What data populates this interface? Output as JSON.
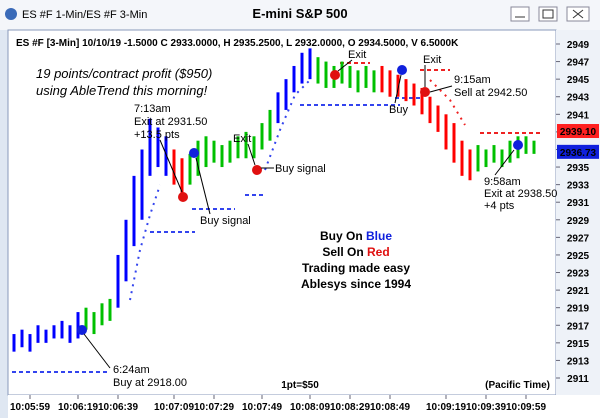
{
  "window_title": "ES #F 1-Min/ES #F 3-Min",
  "chart_data": {
    "type": "ohlc",
    "title": "E-mini S&P 500",
    "subtitle": "ES #F [3-Min] 10/10/19 -1.5000 C 2933.0000, H 2935.2500, L 2932.0000, O 2934.5000, V 6.5000K",
    "categories": [
      null,
      null,
      "10:05:59",
      null,
      null,
      null,
      null,
      null,
      "10:06:19",
      null,
      null,
      null,
      null,
      "10:06:39",
      null,
      null,
      null,
      null,
      null,
      null,
      "10:07:09",
      null,
      null,
      null,
      null,
      "10:07:29",
      null,
      null,
      null,
      null,
      null,
      "10:07:49",
      null,
      null,
      null,
      null,
      null,
      "10:08:09",
      null,
      null,
      null,
      null,
      "10:08:29",
      null,
      null,
      null,
      null,
      "10:08:49",
      null,
      null,
      null,
      null,
      null,
      null,
      "10:09:19",
      null,
      null,
      null,
      null,
      "10:09:39",
      null,
      null,
      null,
      null,
      "10:09:59",
      null
    ],
    "high": [
      2916,
      2916.5,
      2916,
      2917,
      2916.5,
      2917,
      2917.5,
      2917,
      2918.5,
      2919,
      2918.5,
      2919.5,
      2920,
      2925,
      2929,
      2934,
      2937,
      2940.5,
      2939.5,
      2938.5,
      2937,
      2936,
      2936.5,
      2938,
      2938.5,
      2938,
      2937.5,
      2938,
      2938.5,
      2939,
      2938.5,
      2940,
      2941.5,
      2943.5,
      2945,
      2946.5,
      2948,
      2948.5,
      2947.5,
      2947,
      2946.5,
      2947,
      2946.5,
      2946,
      2946.5,
      2946,
      2946.5,
      2946,
      2945.5,
      2945,
      2944.5,
      2944,
      2943,
      2942,
      2941,
      2940,
      2938,
      2937,
      2937.5,
      2937,
      2937.5,
      2937,
      2938,
      2938.5,
      2938.5,
      2938
    ],
    "low": [
      2914,
      2914.5,
      2914,
      2915,
      2915,
      2915.5,
      2915.5,
      2915,
      2915.5,
      2916.5,
      2916,
      2917,
      2917.5,
      2919,
      2922,
      2926,
      2929,
      2934,
      2935,
      2934,
      2933,
      2932,
      2933,
      2934,
      2935,
      2935.5,
      2935,
      2935.5,
      2936,
      2936,
      2936,
      2937,
      2938,
      2940,
      2941.5,
      2943.5,
      2944.5,
      2945,
      2944.5,
      2944,
      2944,
      2944.5,
      2944,
      2943.5,
      2944,
      2943.5,
      2943.5,
      2943,
      2943,
      2942.5,
      2942,
      2941,
      2940,
      2939,
      2937,
      2935.5,
      2934,
      2933.5,
      2934.5,
      2935,
      2935.5,
      2935,
      2935.5,
      2936,
      2936.5,
      2936.5
    ],
    "colors": [
      "#0000ff",
      "#0000ff",
      "#0000ff",
      "#0000ff",
      "#0000ff",
      "#0000ff",
      "#0000ff",
      "#0000ff",
      "#0000ff",
      "#00c000",
      "#00c000",
      "#00c000",
      "#00c000",
      "#0000ff",
      "#0000ff",
      "#0000ff",
      "#0000ff",
      "#0000ff",
      "#0000ff",
      "#0000ff",
      "#ff0000",
      "#ff0000",
      "#00c000",
      "#00c000",
      "#00c000",
      "#00c000",
      "#00c000",
      "#00c000",
      "#00c000",
      "#00c000",
      "#00c000",
      "#00c000",
      "#00c000",
      "#0000ff",
      "#0000ff",
      "#0000ff",
      "#0000ff",
      "#0000ff",
      "#00c000",
      "#00c000",
      "#00c000",
      "#00c000",
      "#00c000",
      "#00c000",
      "#00c000",
      "#00c000",
      "#ff0000",
      "#ff0000",
      "#ff0000",
      "#ff0000",
      "#ff0000",
      "#ff0000",
      "#ff0000",
      "#ff0000",
      "#ff0000",
      "#ff0000",
      "#ff0000",
      "#ff0000",
      "#00c000",
      "#00c000",
      "#00c000",
      "#00c000",
      "#00c000",
      "#00c000",
      "#00c000",
      "#00c000"
    ],
    "ylim": [
      2910,
      2950
    ],
    "yticks": [
      2911,
      2913,
      2915,
      2917,
      2919,
      2921,
      2923,
      2925,
      2927,
      2929,
      2931,
      2933,
      2935,
      2937,
      2939,
      2941,
      2943,
      2945,
      2947,
      2949
    ],
    "price_labels": [
      {
        "value": 2939.1,
        "label": "2939.10",
        "color": "#ff2020"
      },
      {
        "value": 2936.73,
        "label": "2936.73",
        "color": "#1020dd"
      }
    ]
  },
  "annotations": [
    "19 points/contract profit ($950)",
    "using AbleTrend this morning!",
    "7:13am",
    "Exit at 2931.50",
    "+13.5 pts",
    "Exit",
    "Buy signal",
    "Buy signal",
    "Exit",
    "Exit",
    "9:15am",
    "Sell at 2942.50",
    "Buy",
    "9:58am",
    "Exit at 2938.50",
    "+4 pts",
    "6:24am",
    "Buy at 2918.00"
  ],
  "notes": {
    "buy_prefix": "Buy On",
    "buy_color": "Blue",
    "sell_prefix": "Sell On",
    "sell_color": "Red",
    "slogan": "Trading made easy",
    "company": "Ablesys since 1994",
    "point_value": "1pt=$50",
    "timezone": "(Pacific Time)"
  }
}
